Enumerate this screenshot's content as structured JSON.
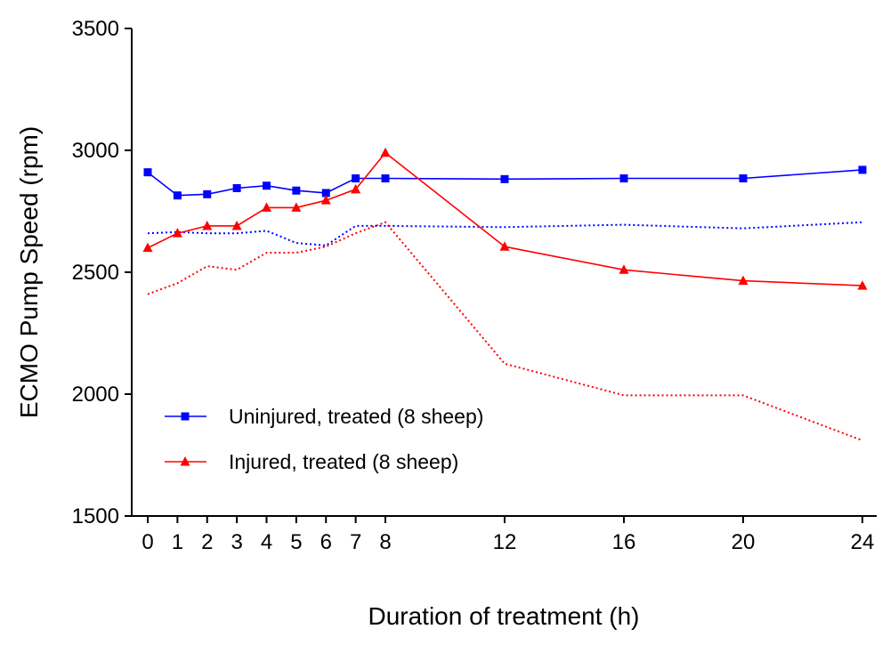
{
  "chart_data": {
    "type": "line",
    "xlabel": "Duration of treatment (h)",
    "ylabel": "ECMO Pump Speed (rpm)",
    "xticks": [
      0,
      1,
      2,
      3,
      4,
      5,
      6,
      7,
      8,
      12,
      16,
      20,
      24
    ],
    "yticks": [
      1500,
      2000,
      2500,
      3000,
      3500
    ],
    "ylim": [
      1500,
      3500
    ],
    "grid": false,
    "legend_position": "lower-left",
    "x": [
      0,
      1,
      2,
      3,
      4,
      5,
      6,
      7,
      8,
      12,
      16,
      20,
      24
    ],
    "series": [
      {
        "name": "Uninjured, treated (8 sheep)",
        "color": "#0000ff",
        "marker": "square",
        "line": "solid",
        "values": [
          2910,
          2815,
          2820,
          2845,
          2855,
          2835,
          2825,
          2885,
          2885,
          2882,
          2885,
          2885,
          2920
        ]
      },
      {
        "name": "Injured, treated (8 sheep)",
        "color": "#ff0000",
        "marker": "triangle",
        "line": "solid",
        "values": [
          2600,
          2660,
          2690,
          2690,
          2765,
          2765,
          2795,
          2840,
          2990,
          2605,
          2510,
          2465,
          2445
        ]
      },
      {
        "color": "#0000ff",
        "marker": "none",
        "line": "dotted",
        "values": [
          2660,
          2665,
          2660,
          2660,
          2670,
          2620,
          2610,
          2690,
          2690,
          2685,
          2695,
          2680,
          2705
        ]
      },
      {
        "color": "#ff0000",
        "marker": "none",
        "line": "dotted",
        "values": [
          2410,
          2455,
          2525,
          2510,
          2580,
          2580,
          2605,
          2660,
          2705,
          2125,
          1995,
          1995,
          1810
        ]
      }
    ]
  }
}
